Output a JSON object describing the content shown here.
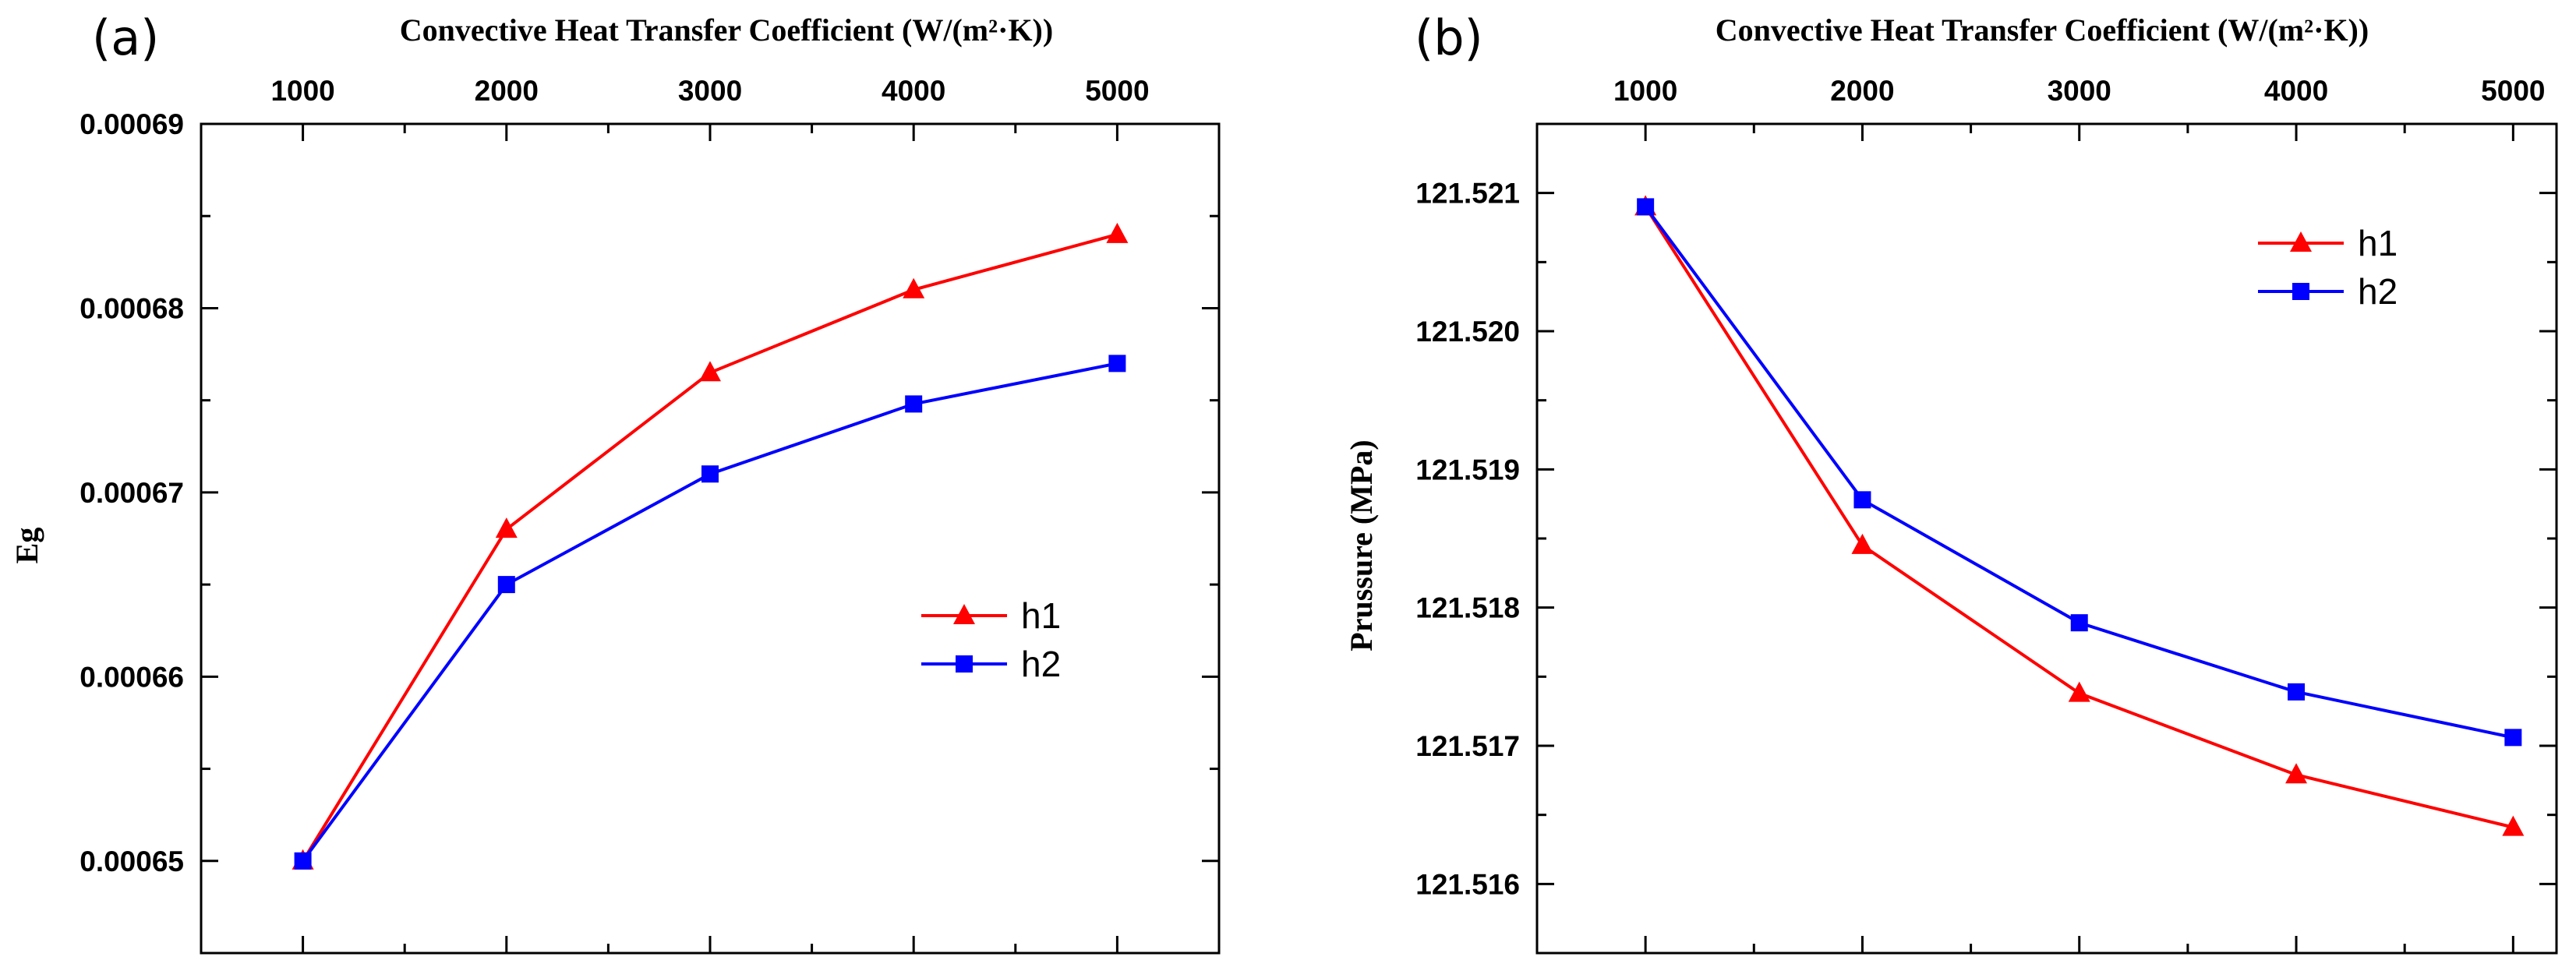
{
  "chart_data": [
    {
      "panel_label": "(a)",
      "type": "line",
      "x2label": "Convective Heat Transfer Coefficient (W/(m²·K))",
      "ylabel": "Eg",
      "x": [
        1000,
        2000,
        3000,
        4000,
        5000
      ],
      "xlim": [
        500,
        5500
      ],
      "ylim": [
        0.000645,
        0.00069
      ],
      "x_ticks": [
        1000,
        2000,
        3000,
        4000,
        5000
      ],
      "x_tick_labels": [
        "1000",
        "2000",
        "3000",
        "4000",
        "5000"
      ],
      "y_ticks": [
        0.00065,
        0.00066,
        0.00067,
        0.00068,
        0.00069
      ],
      "y_tick_labels": [
        "0.00065",
        "0.00066",
        "0.00067",
        "0.00068",
        "0.00069"
      ],
      "legend_position": "center-right",
      "grid": false,
      "series": [
        {
          "name": "h1",
          "color": "#ff0000",
          "marker": "triangle",
          "values": [
            0.00065,
            0.000668,
            0.0006765,
            0.000681,
            0.000684
          ]
        },
        {
          "name": "h2",
          "color": "#0000ff",
          "marker": "square",
          "values": [
            0.00065,
            0.000665,
            0.000671,
            0.0006748,
            0.000677
          ]
        }
      ]
    },
    {
      "panel_label": "(b)",
      "type": "line",
      "x2label": "Convective Heat Transfer Coefficient (W/(m²·K))",
      "ylabel": "Prussure (MPa)",
      "x": [
        1000,
        2000,
        3000,
        4000,
        5000
      ],
      "xlim": [
        500,
        5200
      ],
      "ylim": [
        121.5155,
        121.5215
      ],
      "x_ticks": [
        1000,
        2000,
        3000,
        4000,
        5000
      ],
      "x_tick_labels": [
        "1000",
        "2000",
        "3000",
        "4000",
        "5000"
      ],
      "y_ticks": [
        121.516,
        121.517,
        121.518,
        121.519,
        121.52,
        121.521
      ],
      "y_tick_labels": [
        "121.516",
        "121.517",
        "121.518",
        "121.519",
        "121.520",
        "121.521"
      ],
      "legend_position": "top-right",
      "grid": false,
      "series": [
        {
          "name": "h1",
          "color": "#ff0000",
          "marker": "triangle",
          "values": [
            121.5209,
            121.51845,
            121.51738,
            121.51679,
            121.51641
          ]
        },
        {
          "name": "h2",
          "color": "#0000ff",
          "marker": "square",
          "values": [
            121.5209,
            121.51878,
            121.51789,
            121.51739,
            121.51706
          ]
        }
      ]
    }
  ]
}
